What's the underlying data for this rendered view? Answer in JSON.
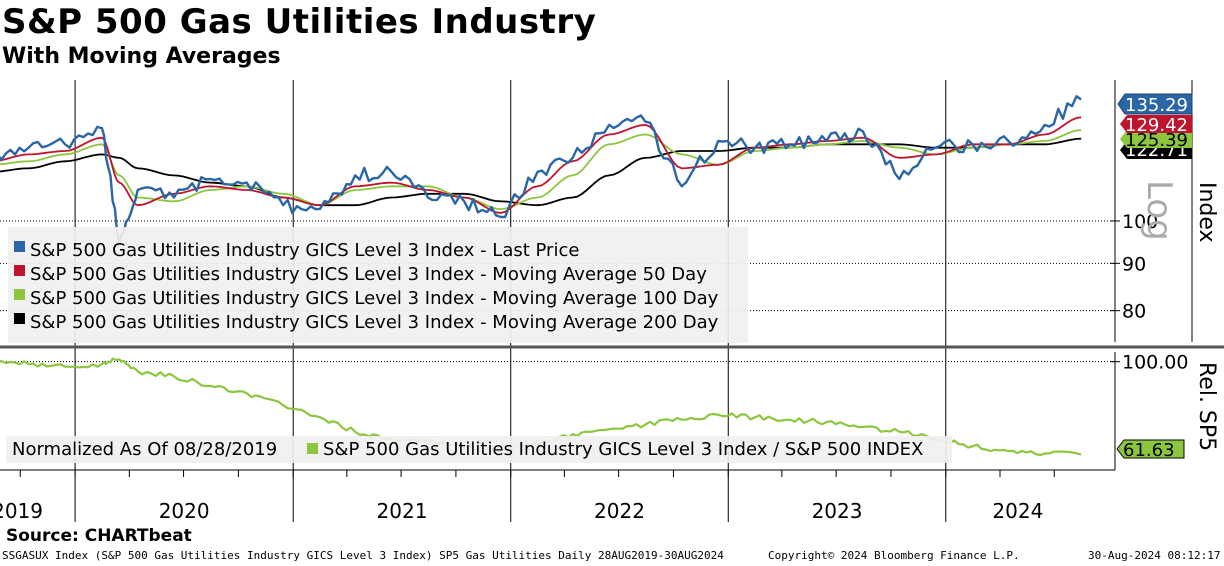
{
  "title": "S&P 500 Gas Utilities Industry",
  "subtitle": "With Moving Averages",
  "source": "Source: CHARTbeat",
  "footer": {
    "left": "SSGASUX Index (S&P 500 Gas Utilities Industry GICS Level 3 Index) SP5 Gas Utilities  Daily 28AUG2019-30AUG2024",
    "center": "Copyright© 2024 Bloomberg Finance L.P.",
    "right": "30-Aug-2024 08:12:17"
  },
  "colors": {
    "last_price": "#2a66a6",
    "ma50": "#c0142e",
    "ma100": "#8cc63f",
    "ma200": "#000000",
    "relative": "#8cc63f",
    "grid": "#000000"
  },
  "chart_data": [
    {
      "type": "line",
      "panel": "upper",
      "yscale": "log",
      "ylabel": "Index",
      "scale_note": "Log",
      "ylim": [
        74,
        142
      ],
      "yticks": [
        80,
        90,
        100
      ],
      "x_labels": [
        "2019",
        "2020",
        "2021",
        "2022",
        "2023",
        "2024"
      ],
      "x_range": [
        "2019-08-28",
        "2024-08-30"
      ],
      "x": [
        "2019-08",
        "2019-10",
        "2019-12",
        "2020-02",
        "2020-03",
        "2020-04",
        "2020-06",
        "2020-08",
        "2020-10",
        "2020-12",
        "2021-02",
        "2021-04",
        "2021-06",
        "2021-08",
        "2021-10",
        "2021-12",
        "2022-02",
        "2022-04",
        "2022-06",
        "2022-08",
        "2022-10",
        "2022-12",
        "2023-02",
        "2023-04",
        "2023-06",
        "2023-08",
        "2023-10",
        "2023-12",
        "2024-02",
        "2024-04",
        "2024-06",
        "2024-08"
      ],
      "series": [
        {
          "name": "S&P 500 Gas Utilities Industry GICS Level 3 Index  - Last Price",
          "color": "#2a66a6",
          "values": [
            117,
            120,
            121,
            126,
            94,
            108,
            106,
            111,
            110,
            104,
            103,
            112,
            113,
            106,
            105,
            101,
            113,
            117,
            127,
            128,
            109,
            122,
            120,
            121,
            122,
            125,
            111,
            120,
            121,
            122,
            127,
            135.29
          ]
        },
        {
          "name": "S&P 500 Gas Utilities Industry GICS Level 3 Index  - Moving Average 50 Day",
          "color": "#c0142e",
          "values": [
            116,
            118,
            119,
            123,
            110,
            104,
            107,
            109,
            108,
            106,
            104,
            109,
            110,
            108,
            106,
            102,
            109,
            116,
            124,
            127,
            114,
            115,
            120,
            121,
            122,
            123,
            117,
            118,
            121,
            121,
            124,
            129.42
          ]
        },
        {
          "name": "S&P 500 Gas Utilities Industry GICS Level 3 Index  - Moving Average 100 Day",
          "color": "#8cc63f",
          "values": [
            115,
            116,
            118,
            121,
            112,
            106,
            105,
            108,
            109,
            107,
            104,
            108,
            109,
            109,
            106,
            103,
            106,
            112,
            121,
            124,
            118,
            115,
            119,
            120,
            121,
            122,
            120,
            118,
            120,
            121,
            122,
            125.39
          ]
        },
        {
          "name": "S&P 500 Gas Utilities Industry GICS Level 3 Index  - Moving Average 200 Day",
          "color": "#000000",
          "values": [
            113,
            114,
            116,
            118,
            117,
            114,
            112,
            110,
            109,
            106,
            104,
            104,
            106,
            107,
            107,
            105,
            104,
            106,
            112,
            117,
            119,
            119,
            120,
            120,
            121,
            121,
            121,
            120,
            120,
            121,
            121,
            122.71
          ]
        }
      ],
      "last_value_labels": [
        "135.29",
        "129.42",
        "125.39",
        "122.71"
      ]
    },
    {
      "type": "line",
      "panel": "lower",
      "ylabel": "Rel. SP5",
      "normalization": "Normalized As Of 08/28/2019",
      "ylim": [
        56,
        104
      ],
      "yticks": [
        100
      ],
      "ytick_labels": [
        "100.00"
      ],
      "x": [
        "2019-08",
        "2019-10",
        "2019-12",
        "2020-02",
        "2020-03",
        "2020-04",
        "2020-06",
        "2020-08",
        "2020-10",
        "2020-12",
        "2021-02",
        "2021-04",
        "2021-06",
        "2021-08",
        "2021-10",
        "2021-12",
        "2022-02",
        "2022-04",
        "2022-06",
        "2022-08",
        "2022-10",
        "2022-12",
        "2023-02",
        "2023-04",
        "2023-06",
        "2023-08",
        "2023-10",
        "2023-12",
        "2024-02",
        "2024-04",
        "2024-06",
        "2024-08"
      ],
      "series": [
        {
          "name": "S&P 500 Gas Utilities Industry GICS Level 3 Index / S&P 500 INDEX",
          "color": "#8cc63f",
          "values": [
            100,
            99,
            98,
            99,
            101,
            96,
            94,
            90,
            87,
            82,
            77,
            71,
            68,
            67,
            65,
            63,
            66,
            70,
            72,
            74,
            76,
            78,
            77,
            76,
            75,
            73,
            71,
            68,
            65,
            63,
            62,
            61.63
          ]
        }
      ],
      "last_value_labels": [
        "61.63"
      ]
    }
  ]
}
